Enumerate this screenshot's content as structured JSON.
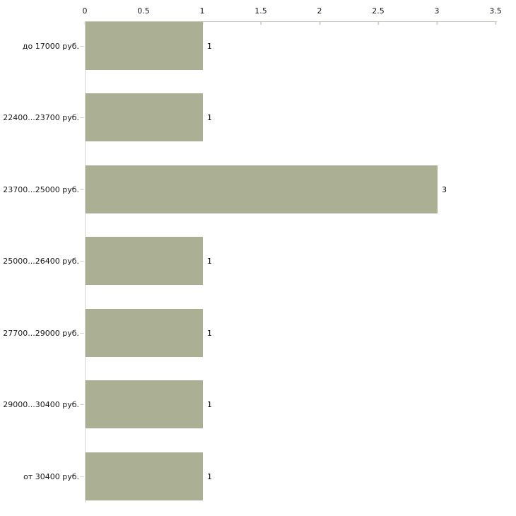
{
  "chart_data": {
    "type": "bar",
    "orientation": "horizontal",
    "title": "",
    "xlabel": "",
    "ylabel": "",
    "categories": [
      "до 17000 руб.",
      "22400...23700 руб.",
      "23700...25000 руб.",
      "25000...26400 руб.",
      "27700...29000 руб.",
      "29000...30400 руб.",
      "от 30400 руб."
    ],
    "values": [
      1,
      1,
      3,
      1,
      1,
      1,
      1
    ],
    "value_labels": [
      "1",
      "1",
      "3",
      "1",
      "1",
      "1",
      "1"
    ],
    "x_tick_labels": [
      "0",
      "0.5",
      "1",
      "1.5",
      "2",
      "2.5",
      "3",
      "3.5"
    ],
    "xlim": [
      0,
      3.5
    ],
    "axis_position": "top",
    "grid": false,
    "legend": false,
    "colors": {
      "bar": "#abb095",
      "axis_line": "#c9c9c1",
      "tick_mark": "#d9d5bd",
      "text": "#1a1a1a",
      "background": "#ffffff"
    }
  }
}
